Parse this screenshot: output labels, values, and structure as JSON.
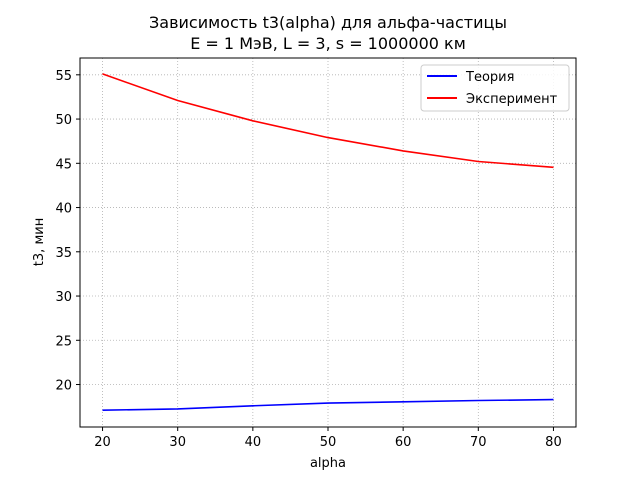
{
  "chart_data": {
    "type": "line",
    "title": "Зависимость t3(alpha) для альфа-частицы",
    "subtitle": "E = 1 МэВ, L = 3, s = 1000000 км",
    "xlabel": "alpha",
    "ylabel": "t3, мин",
    "x": [
      20,
      30,
      40,
      50,
      60,
      70,
      80
    ],
    "xlim": [
      17,
      83
    ],
    "ylim": [
      15.2,
      56.9
    ],
    "xticks": [
      20,
      30,
      40,
      50,
      60,
      70,
      80
    ],
    "yticks": [
      20,
      25,
      30,
      35,
      40,
      45,
      50,
      55
    ],
    "grid": true,
    "legend_position": "top-right",
    "series": [
      {
        "name": "Теория",
        "color": "#0000ff",
        "values": [
          17.1,
          17.25,
          17.6,
          17.9,
          18.05,
          18.2,
          18.3
        ]
      },
      {
        "name": "Эксперимент",
        "color": "#ff0000",
        "values": [
          55.1,
          52.1,
          49.8,
          47.9,
          46.4,
          45.2,
          44.55
        ]
      }
    ]
  }
}
